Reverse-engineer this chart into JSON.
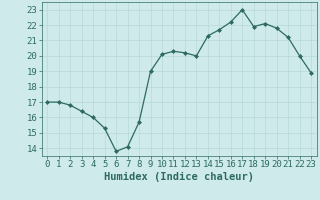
{
  "x": [
    0,
    1,
    2,
    3,
    4,
    5,
    6,
    7,
    8,
    9,
    10,
    11,
    12,
    13,
    14,
    15,
    16,
    17,
    18,
    19,
    20,
    21,
    22,
    23
  ],
  "y": [
    17.0,
    17.0,
    16.8,
    16.4,
    16.0,
    15.3,
    13.8,
    14.1,
    15.7,
    19.0,
    20.1,
    20.3,
    20.2,
    20.0,
    21.3,
    21.7,
    22.2,
    23.0,
    21.9,
    22.1,
    21.8,
    21.2,
    20.0,
    18.9
  ],
  "xlabel": "Humidex (Indice chaleur)",
  "ylim": [
    13.5,
    23.5
  ],
  "xlim": [
    -0.5,
    23.5
  ],
  "yticks": [
    14,
    15,
    16,
    17,
    18,
    19,
    20,
    21,
    22,
    23
  ],
  "xticks": [
    0,
    1,
    2,
    3,
    4,
    5,
    6,
    7,
    8,
    9,
    10,
    11,
    12,
    13,
    14,
    15,
    16,
    17,
    18,
    19,
    20,
    21,
    22,
    23
  ],
  "line_color": "#2e6b5e",
  "marker_color": "#2e6b5e",
  "bg_color": "#ceeaea",
  "grid_color": "#b8d8d8",
  "axis_label_color": "#2e6b5e",
  "tick_color": "#2e6b5e",
  "xlabel_fontsize": 7.5,
  "tick_fontsize": 6.5
}
